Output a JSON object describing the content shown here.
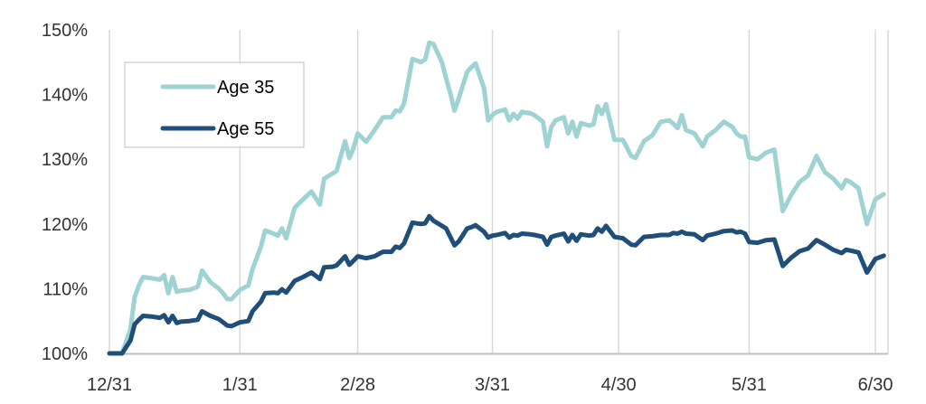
{
  "chart_data": {
    "type": "line",
    "title": "",
    "xlabel": "",
    "ylabel": "",
    "x_tick_labels": [
      "12/31",
      "1/31",
      "2/28",
      "3/31",
      "4/30",
      "5/31",
      "6/30"
    ],
    "y_tick_labels": [
      "100%",
      "110%",
      "120%",
      "130%",
      "140%",
      "150%"
    ],
    "ylim": [
      100,
      150
    ],
    "grid": "vertical",
    "legend_position": "top-left",
    "colors": {
      "age35": "#9fd3d3",
      "age55": "#1f4e79",
      "grid": "#d9d9d9",
      "axis": "#bfbfbf"
    },
    "series": [
      {
        "name": "Age 35",
        "key": "age35",
        "points": [
          [
            "12/31",
            100.0
          ],
          [
            "1/3",
            100.0
          ],
          [
            "1/5",
            103.8
          ],
          [
            "1/6",
            108.7
          ],
          [
            "1/7",
            110.5
          ],
          [
            "1/8",
            111.8
          ],
          [
            "1/10",
            111.6
          ],
          [
            "1/12",
            111.4
          ],
          [
            "1/13",
            112.1
          ],
          [
            "1/14",
            109.3
          ],
          [
            "1/15",
            111.8
          ],
          [
            "1/16",
            109.5
          ],
          [
            "1/17",
            109.7
          ],
          [
            "1/19",
            109.8
          ],
          [
            "1/21",
            110.3
          ],
          [
            "1/22",
            112.8
          ],
          [
            "1/24",
            111.0
          ],
          [
            "1/26",
            110.0
          ],
          [
            "1/27",
            109.3
          ],
          [
            "1/28",
            108.4
          ],
          [
            "1/29",
            108.4
          ],
          [
            "1/31",
            109.8
          ],
          [
            "2/2",
            110.5
          ],
          [
            "2/3",
            113.0
          ],
          [
            "2/5",
            116.5
          ],
          [
            "2/6",
            119.0
          ],
          [
            "2/8",
            118.5
          ],
          [
            "2/9",
            118.2
          ],
          [
            "2/10",
            119.3
          ],
          [
            "2/11",
            117.8
          ],
          [
            "2/13",
            122.5
          ],
          [
            "2/15",
            123.8
          ],
          [
            "2/17",
            125.0
          ],
          [
            "2/19",
            123.0
          ],
          [
            "2/20",
            127.0
          ],
          [
            "2/22",
            127.8
          ],
          [
            "2/23",
            128.2
          ],
          [
            "2/24",
            130.6
          ],
          [
            "2/25",
            132.8
          ],
          [
            "2/26",
            130.2
          ],
          [
            "2/27",
            131.7
          ],
          [
            "2/28",
            134.0
          ],
          [
            "3/1",
            132.7
          ],
          [
            "3/3",
            134.5
          ],
          [
            "3/5",
            136.5
          ],
          [
            "3/7",
            136.5
          ],
          [
            "3/8",
            137.5
          ],
          [
            "3/9",
            137.4
          ],
          [
            "3/10",
            138.6
          ],
          [
            "3/12",
            145.5
          ],
          [
            "3/14",
            145.0
          ],
          [
            "3/15",
            145.4
          ],
          [
            "3/16",
            148.0
          ],
          [
            "3/17",
            147.8
          ],
          [
            "3/19",
            145.0
          ],
          [
            "3/20",
            142.5
          ],
          [
            "3/21",
            140.2
          ],
          [
            "3/22",
            137.5
          ],
          [
            "3/23",
            139.4
          ],
          [
            "3/25",
            143.5
          ],
          [
            "3/26",
            144.2
          ],
          [
            "3/27",
            144.8
          ],
          [
            "3/29",
            141.0
          ],
          [
            "3/30",
            136.0
          ],
          [
            "3/31",
            136.8
          ],
          [
            "4/1",
            137.3
          ],
          [
            "4/3",
            137.7
          ],
          [
            "4/4",
            136.0
          ],
          [
            "4/5",
            137.0
          ],
          [
            "4/6",
            136.3
          ],
          [
            "4/7",
            137.3
          ],
          [
            "4/9",
            137.1
          ],
          [
            "4/10",
            136.8
          ],
          [
            "4/12",
            135.8
          ],
          [
            "4/13",
            132.0
          ],
          [
            "4/14",
            135.0
          ],
          [
            "4/15",
            136.0
          ],
          [
            "4/17",
            136.5
          ],
          [
            "4/18",
            134.0
          ],
          [
            "4/19",
            135.8
          ],
          [
            "4/20",
            133.5
          ],
          [
            "4/21",
            135.6
          ],
          [
            "4/23",
            135.2
          ],
          [
            "4/24",
            135.4
          ],
          [
            "4/25",
            138.2
          ],
          [
            "4/26",
            137.0
          ],
          [
            "4/27",
            138.5
          ],
          [
            "4/29",
            133.0
          ],
          [
            "4/30",
            133.0
          ],
          [
            "5/1",
            133.0
          ],
          [
            "5/3",
            130.5
          ],
          [
            "5/4",
            130.2
          ],
          [
            "5/6",
            132.8
          ],
          [
            "5/8",
            133.7
          ],
          [
            "5/10",
            135.8
          ],
          [
            "5/12",
            136.0
          ],
          [
            "5/13",
            135.5
          ],
          [
            "5/14",
            134.8
          ],
          [
            "5/15",
            136.8
          ],
          [
            "5/16",
            134.5
          ],
          [
            "5/18",
            134.0
          ],
          [
            "5/20",
            132.0
          ],
          [
            "5/21",
            133.5
          ],
          [
            "5/23",
            134.5
          ],
          [
            "5/25",
            135.8
          ],
          [
            "5/27",
            135.0
          ],
          [
            "5/28",
            134.0
          ],
          [
            "5/29",
            133.5
          ],
          [
            "5/30",
            133.5
          ],
          [
            "5/31",
            130.3
          ],
          [
            "6/2",
            130.0
          ],
          [
            "6/4",
            131.0
          ],
          [
            "6/6",
            131.5
          ],
          [
            "6/8",
            122.0
          ],
          [
            "6/10",
            124.5
          ],
          [
            "6/12",
            126.5
          ],
          [
            "6/14",
            127.5
          ],
          [
            "6/16",
            130.5
          ],
          [
            "6/18",
            128.0
          ],
          [
            "6/20",
            127.0
          ],
          [
            "6/22",
            125.5
          ],
          [
            "6/23",
            126.8
          ],
          [
            "6/24",
            126.5
          ],
          [
            "6/26",
            125.5
          ],
          [
            "6/28",
            120.0
          ],
          [
            "6/30",
            123.8
          ],
          [
            "7/2",
            124.6
          ]
        ]
      },
      {
        "name": "Age 55",
        "key": "age55",
        "points": [
          [
            "12/31",
            100.0
          ],
          [
            "1/3",
            100.0
          ],
          [
            "1/5",
            102.0
          ],
          [
            "1/6",
            104.5
          ],
          [
            "1/7",
            105.2
          ],
          [
            "1/8",
            105.8
          ],
          [
            "1/10",
            105.7
          ],
          [
            "1/12",
            105.5
          ],
          [
            "1/13",
            105.9
          ],
          [
            "1/14",
            104.8
          ],
          [
            "1/15",
            105.8
          ],
          [
            "1/16",
            104.7
          ],
          [
            "1/17",
            104.9
          ],
          [
            "1/19",
            105.0
          ],
          [
            "1/21",
            105.2
          ],
          [
            "1/22",
            106.5
          ],
          [
            "1/24",
            105.8
          ],
          [
            "1/26",
            105.3
          ],
          [
            "1/27",
            104.8
          ],
          [
            "1/28",
            104.3
          ],
          [
            "1/29",
            104.2
          ],
          [
            "1/31",
            104.8
          ],
          [
            "2/2",
            105.0
          ],
          [
            "2/3",
            106.5
          ],
          [
            "2/5",
            108.0
          ],
          [
            "2/6",
            109.3
          ],
          [
            "2/8",
            109.4
          ],
          [
            "2/9",
            109.3
          ],
          [
            "2/10",
            109.9
          ],
          [
            "2/11",
            109.4
          ],
          [
            "2/13",
            111.2
          ],
          [
            "2/15",
            111.8
          ],
          [
            "2/17",
            112.5
          ],
          [
            "2/19",
            111.5
          ],
          [
            "2/20",
            113.3
          ],
          [
            "2/22",
            113.4
          ],
          [
            "2/23",
            113.6
          ],
          [
            "2/24",
            114.3
          ],
          [
            "2/25",
            115.0
          ],
          [
            "2/26",
            113.7
          ],
          [
            "2/27",
            114.3
          ],
          [
            "2/28",
            115.0
          ],
          [
            "3/1",
            114.7
          ],
          [
            "3/3",
            115.0
          ],
          [
            "3/5",
            115.7
          ],
          [
            "3/7",
            115.7
          ],
          [
            "3/8",
            116.5
          ],
          [
            "3/9",
            116.3
          ],
          [
            "3/10",
            117.0
          ],
          [
            "3/12",
            120.2
          ],
          [
            "3/14",
            120.0
          ],
          [
            "3/15",
            120.1
          ],
          [
            "3/16",
            121.2
          ],
          [
            "3/17",
            120.5
          ],
          [
            "3/19",
            119.7
          ],
          [
            "3/20",
            119.3
          ],
          [
            "3/21",
            118.0
          ],
          [
            "3/22",
            116.7
          ],
          [
            "3/23",
            117.3
          ],
          [
            "3/25",
            119.3
          ],
          [
            "3/26",
            119.5
          ],
          [
            "3/27",
            119.8
          ],
          [
            "3/29",
            118.8
          ],
          [
            "3/30",
            117.9
          ],
          [
            "3/31",
            118.2
          ],
          [
            "4/1",
            118.3
          ],
          [
            "4/3",
            118.6
          ],
          [
            "4/4",
            117.9
          ],
          [
            "4/5",
            118.3
          ],
          [
            "4/6",
            118.2
          ],
          [
            "4/7",
            118.5
          ],
          [
            "4/9",
            118.4
          ],
          [
            "4/10",
            118.3
          ],
          [
            "4/12",
            118.0
          ],
          [
            "4/13",
            116.8
          ],
          [
            "4/14",
            118.0
          ],
          [
            "4/15",
            118.2
          ],
          [
            "4/17",
            118.5
          ],
          [
            "4/18",
            117.3
          ],
          [
            "4/19",
            118.3
          ],
          [
            "4/20",
            117.4
          ],
          [
            "4/21",
            118.4
          ],
          [
            "4/23",
            118.2
          ],
          [
            "4/24",
            118.3
          ],
          [
            "4/25",
            119.3
          ],
          [
            "4/26",
            118.8
          ],
          [
            "4/27",
            119.7
          ],
          [
            "4/29",
            118.0
          ],
          [
            "4/30",
            117.9
          ],
          [
            "5/1",
            117.8
          ],
          [
            "5/3",
            116.8
          ],
          [
            "5/4",
            116.7
          ],
          [
            "5/6",
            118.0
          ],
          [
            "5/8",
            118.1
          ],
          [
            "5/10",
            118.3
          ],
          [
            "5/12",
            118.3
          ],
          [
            "5/13",
            118.6
          ],
          [
            "5/14",
            118.5
          ],
          [
            "5/15",
            118.8
          ],
          [
            "5/16",
            118.5
          ],
          [
            "5/18",
            118.4
          ],
          [
            "5/20",
            117.5
          ],
          [
            "5/21",
            118.2
          ],
          [
            "5/23",
            118.5
          ],
          [
            "5/25",
            118.9
          ],
          [
            "5/27",
            119.0
          ],
          [
            "5/28",
            118.7
          ],
          [
            "5/29",
            118.8
          ],
          [
            "5/30",
            118.5
          ],
          [
            "5/31",
            117.2
          ],
          [
            "6/2",
            117.1
          ],
          [
            "6/4",
            117.5
          ],
          [
            "6/6",
            117.6
          ],
          [
            "6/8",
            113.5
          ],
          [
            "6/10",
            114.8
          ],
          [
            "6/12",
            115.8
          ],
          [
            "6/14",
            116.2
          ],
          [
            "6/16",
            117.5
          ],
          [
            "6/18",
            116.8
          ],
          [
            "6/20",
            116.0
          ],
          [
            "6/22",
            115.5
          ],
          [
            "6/23",
            116.0
          ],
          [
            "6/24",
            115.9
          ],
          [
            "6/26",
            115.6
          ],
          [
            "6/28",
            112.5
          ],
          [
            "6/30",
            114.6
          ],
          [
            "7/2",
            115.1
          ]
        ]
      }
    ]
  }
}
